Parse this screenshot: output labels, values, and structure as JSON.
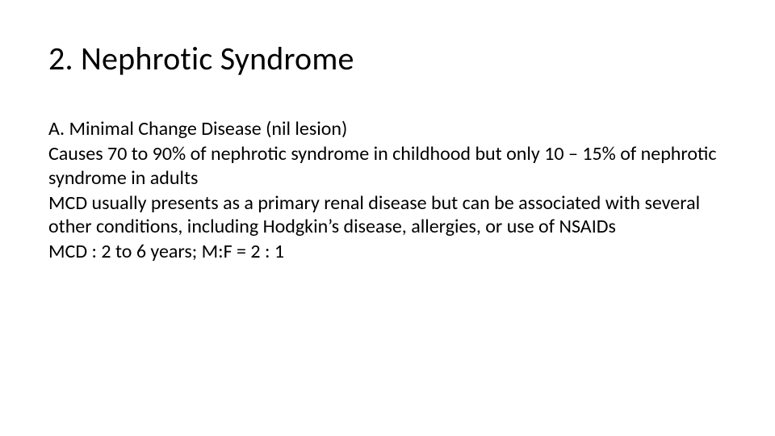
{
  "title": "2. Nephrotic Syndrome",
  "paragraphs": [
    "A. Minimal Change Disease (nil lesion)",
    "Causes 70 to 90% of nephrotic syndrome in childhood but only 10 – 15% of nephrotic syndrome in adults",
    "MCD usually presents as a primary renal disease but can be associated with several other conditions, including Hodgkin’s disease, allergies, or use of NSAIDs",
    "MCD : 2 to 6 years; M:F = 2 : 1"
  ],
  "style": {
    "background_color": "#ffffff",
    "text_color": "#000000",
    "title_fontsize_pt": 40,
    "body_fontsize_pt": 24,
    "font_family": "Calibri"
  }
}
